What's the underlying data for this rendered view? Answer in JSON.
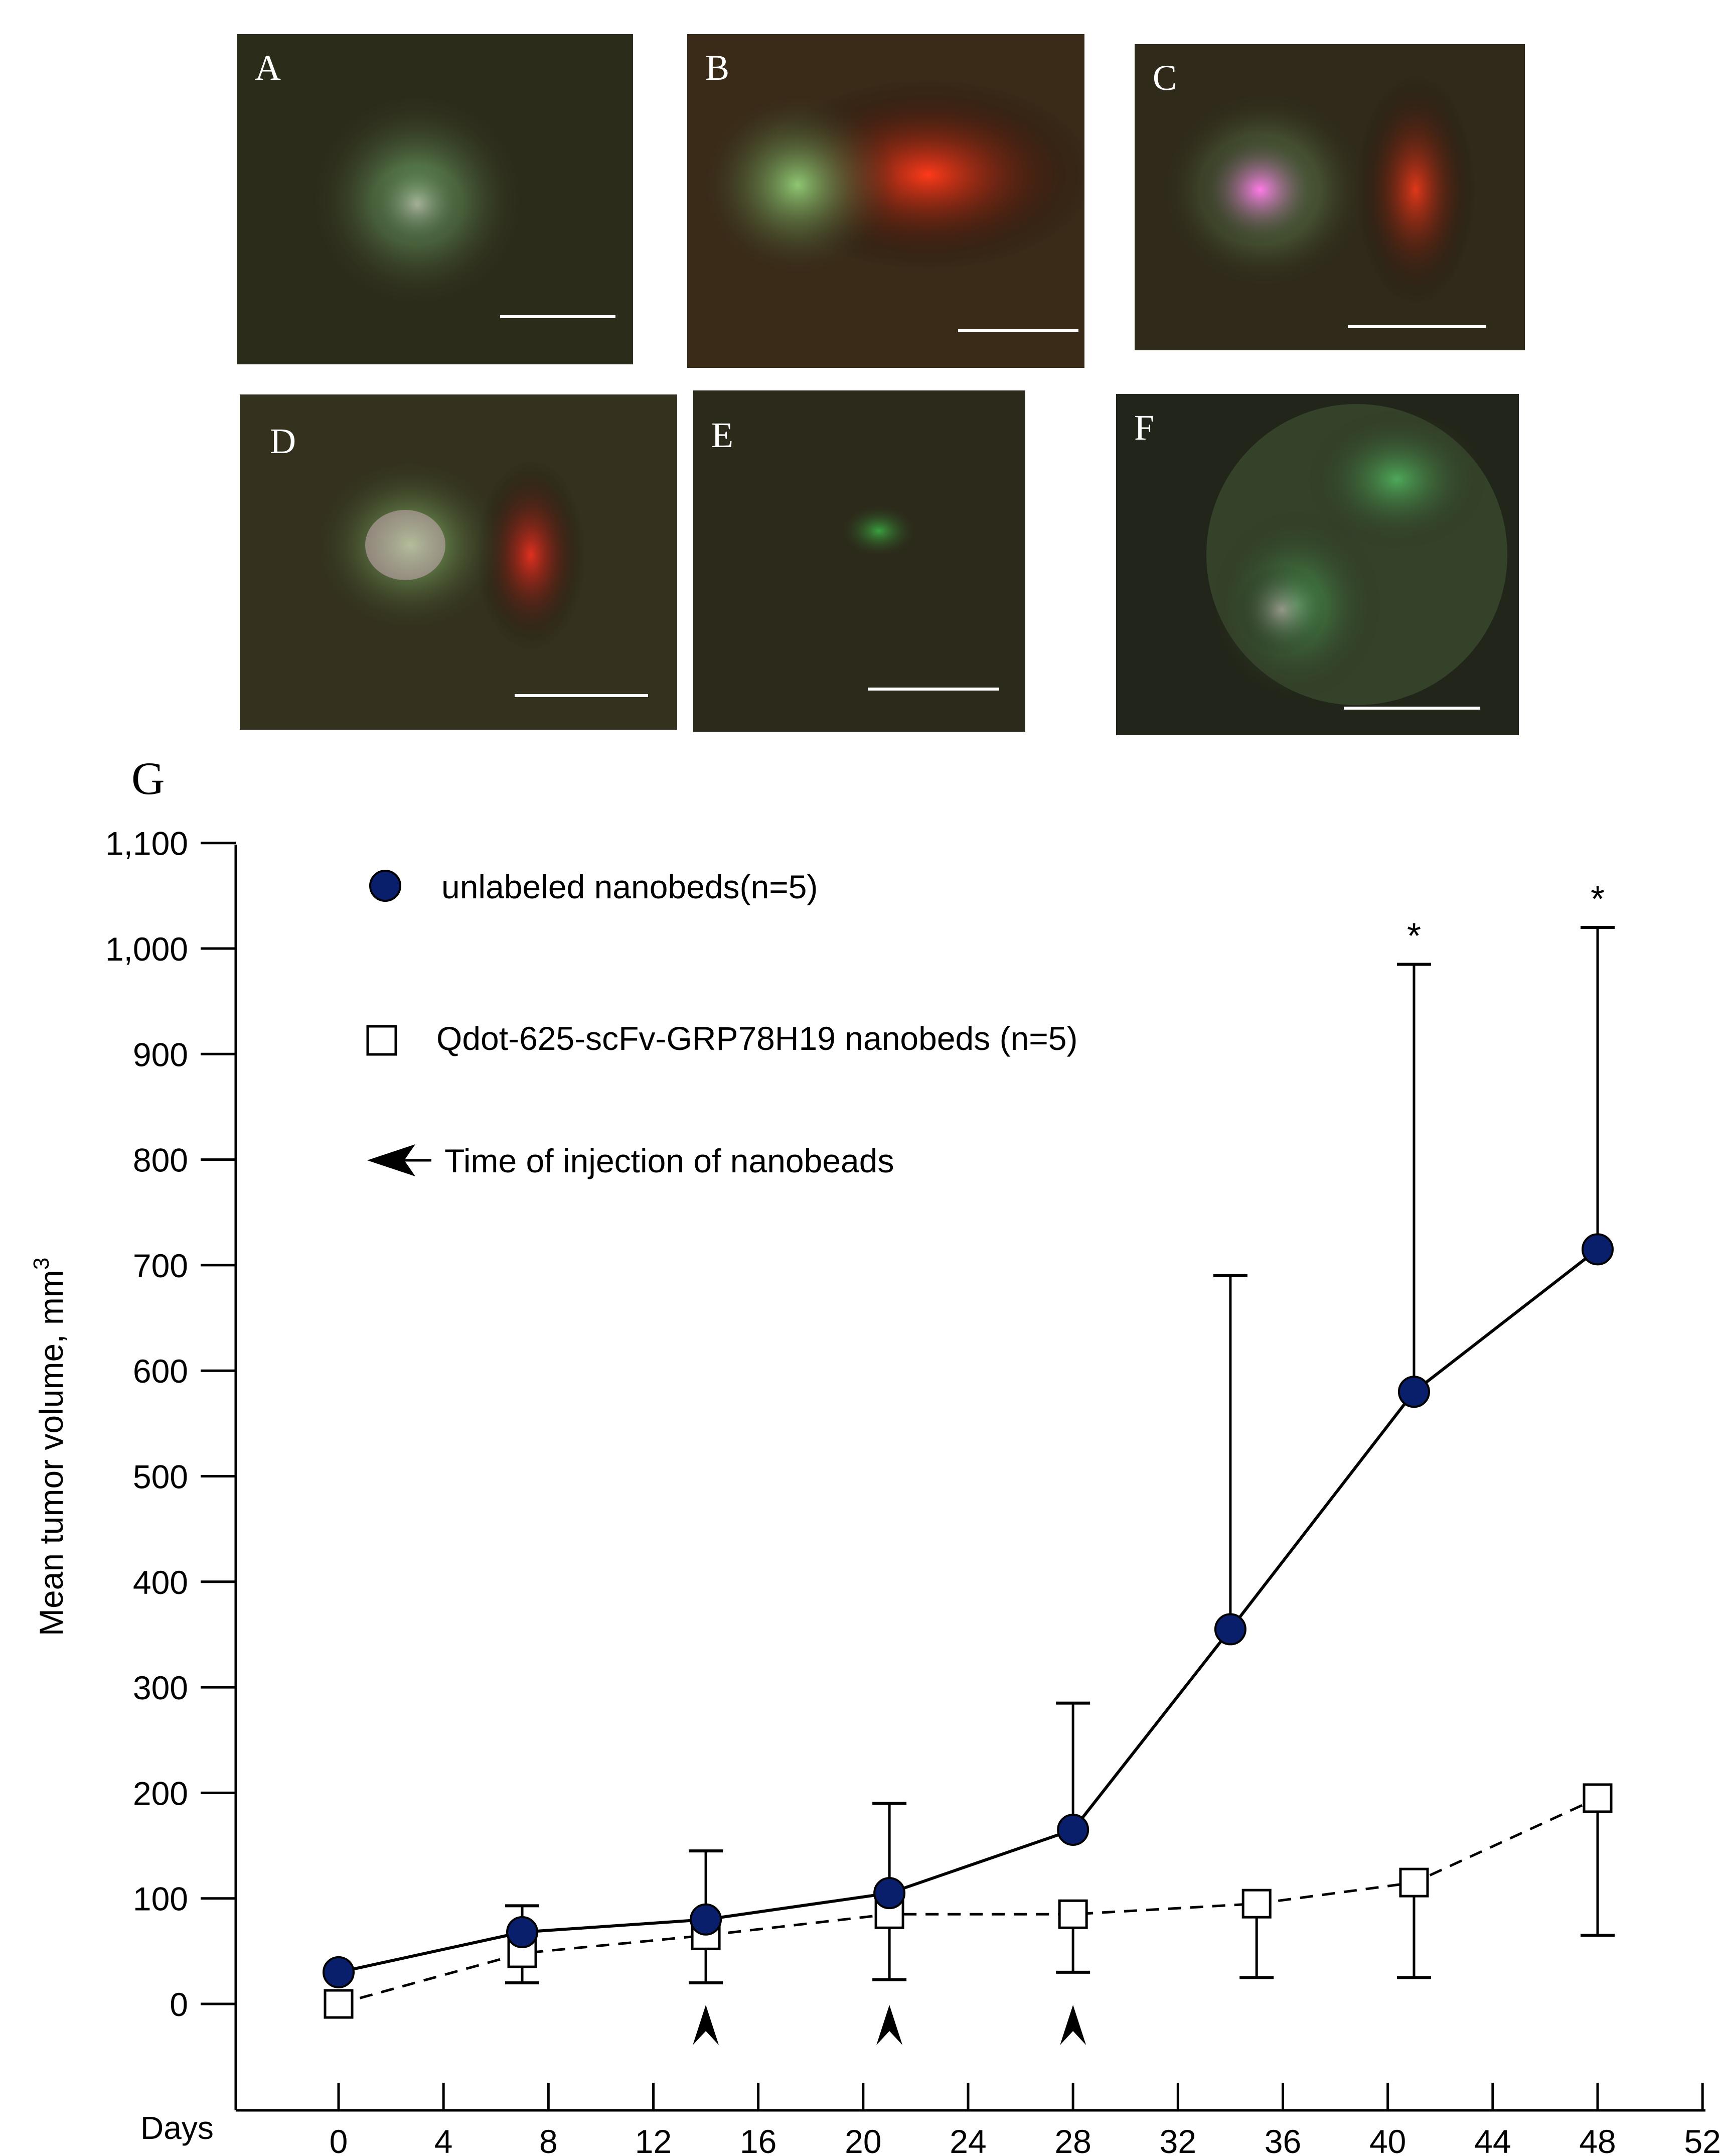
{
  "panels": [
    {
      "label": "A",
      "glow": "#7fc37a",
      "accent": "#c9a6b4"
    },
    {
      "label": "B",
      "glow": "#8fc772",
      "accent": "#ff3a1a"
    },
    {
      "label": "C",
      "glow": "#8fd07a",
      "accent": "#ff7ae8"
    },
    {
      "label": "D",
      "glow": "#8fc772",
      "accent": "#e03020"
    },
    {
      "label": "E",
      "glow": "#3aa040",
      "accent": "#3a3a20"
    },
    {
      "label": "F",
      "glow": "#4ea85a",
      "accent": "#c9a6b4"
    }
  ],
  "chart_data": {
    "type": "line",
    "panel_label": "G",
    "xlabel": "Days",
    "ylabel": "Mean tumor volume, mm",
    "ylabel_sup": "3",
    "xlim": [
      -4,
      52
    ],
    "ylim": [
      -100,
      1100
    ],
    "xticks": [
      0,
      4,
      8,
      12,
      16,
      20,
      24,
      28,
      32,
      36,
      40,
      44,
      48,
      52
    ],
    "xtick_labels": [
      "0",
      "4",
      "8",
      "12",
      "16",
      "20",
      "24",
      "28",
      "32",
      "36",
      "40",
      "44",
      "48",
      "52"
    ],
    "yticks": [
      0,
      100,
      200,
      300,
      400,
      500,
      600,
      700,
      800,
      900,
      1000,
      1100
    ],
    "ytick_labels": [
      "0",
      "100",
      "200",
      "300",
      "400",
      "500",
      "600",
      "700",
      "800",
      "900",
      "1,000",
      "1,100"
    ],
    "grid": false,
    "series": [
      {
        "name": "unlabeled nanobeds(n=5)",
        "color": "#0a1f6b",
        "marker": "circle",
        "line": "solid",
        "x": [
          0,
          7,
          14,
          21,
          28,
          34,
          41,
          48
        ],
        "y": [
          30,
          68,
          80,
          105,
          165,
          355,
          580,
          715
        ],
        "err_up": [
          0,
          25,
          65,
          85,
          120,
          335,
          405,
          305
        ]
      },
      {
        "name": "Qdot-625-scFv-GRP78H19 nanobeds (n=5)",
        "color": "#ffffff",
        "marker": "square",
        "line": "dashed",
        "x": [
          0,
          7,
          14,
          21,
          28,
          35,
          41,
          48
        ],
        "y": [
          0,
          48,
          65,
          85,
          85,
          95,
          115,
          195
        ],
        "err_down": [
          0,
          28,
          45,
          62,
          55,
          70,
          90,
          130
        ]
      }
    ],
    "significance": [
      {
        "x": 41,
        "label": "*"
      },
      {
        "x": 48,
        "label": "*"
      }
    ],
    "injection_days": [
      14,
      21,
      28
    ],
    "injection_legend": "Time of  injection of nanobeads",
    "legend_placement": "top-left"
  }
}
